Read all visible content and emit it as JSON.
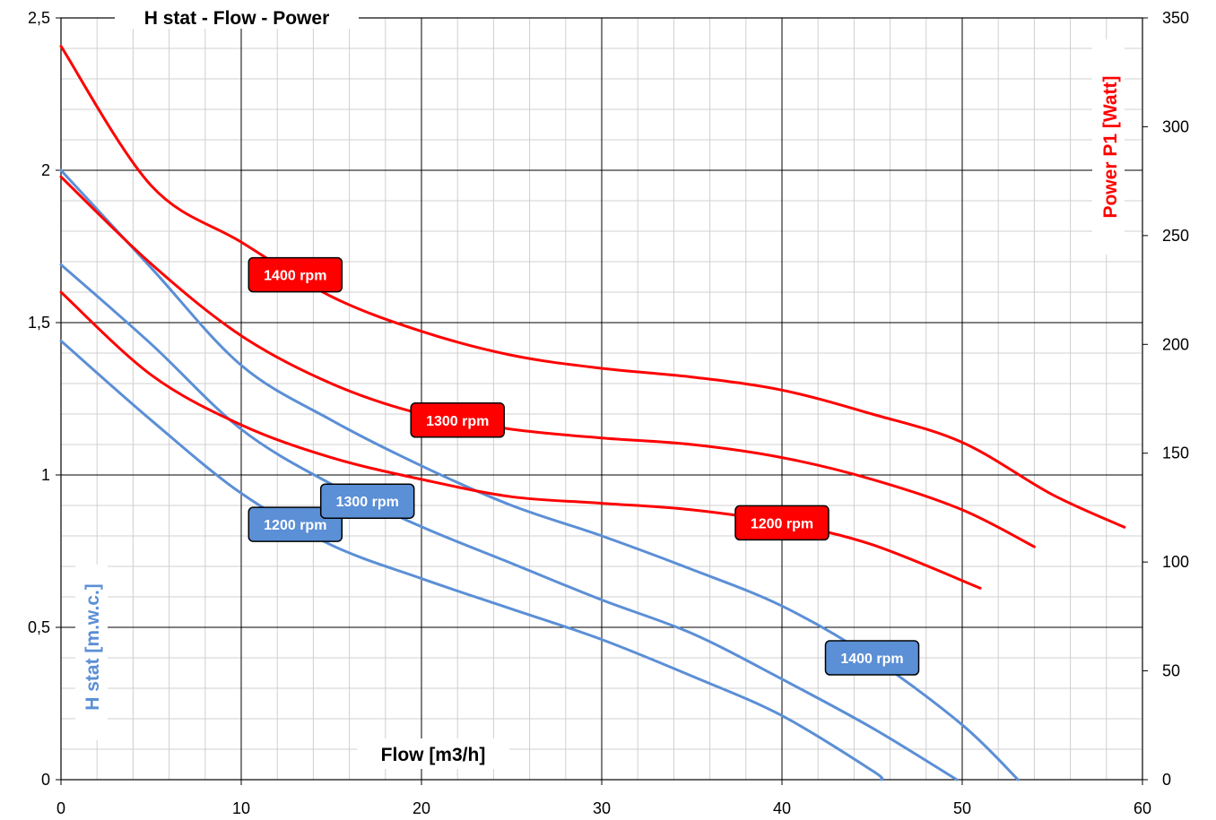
{
  "chart_data": {
    "type": "line",
    "title": "H stat - Flow - Power",
    "xlabel": "Flow [m3/h]",
    "ylabel_left": "H stat  [m.w.c.]",
    "ylabel_right": "Power P1  [Watt]",
    "xlim": [
      0,
      60
    ],
    "ylim_left": [
      0,
      2.5
    ],
    "ylim_right": [
      0,
      350
    ],
    "x_ticks": [
      "0",
      "10",
      "20",
      "30",
      "40",
      "50",
      "60"
    ],
    "y_left_ticks": [
      "0",
      "0,5",
      "1",
      "1,5",
      "2",
      "2,5"
    ],
    "y_right_ticks": [
      "0",
      "50",
      "100",
      "150",
      "200",
      "250",
      "300",
      "350"
    ],
    "grid": true,
    "colors": {
      "head": "#5b8fd6",
      "power": "#ff0000",
      "label_border": "#000000"
    },
    "series": [
      {
        "name": "1200 rpm",
        "kind": "head",
        "axis": "left",
        "x": [
          0,
          5,
          10,
          15,
          20,
          25,
          30,
          35,
          40,
          45,
          45.5
        ],
        "y": [
          1.44,
          1.18,
          0.94,
          0.77,
          0.66,
          0.56,
          0.46,
          0.34,
          0.21,
          0.03,
          0.0
        ]
      },
      {
        "name": "1300 rpm",
        "kind": "head",
        "axis": "left",
        "x": [
          0,
          5,
          10,
          15,
          20,
          25,
          30,
          35,
          40,
          45,
          49.7
        ],
        "y": [
          1.69,
          1.43,
          1.15,
          0.97,
          0.83,
          0.71,
          0.59,
          0.48,
          0.33,
          0.17,
          0.0
        ]
      },
      {
        "name": "1400 rpm",
        "kind": "head",
        "axis": "left",
        "x": [
          0,
          5,
          10,
          15,
          20,
          25,
          30,
          35,
          40,
          45,
          50,
          53.1
        ],
        "y": [
          2.0,
          1.68,
          1.36,
          1.18,
          1.03,
          0.9,
          0.8,
          0.69,
          0.57,
          0.4,
          0.18,
          0.0
        ]
      },
      {
        "name": "1200 rpm",
        "kind": "power",
        "axis": "right",
        "x": [
          0,
          5,
          10,
          15,
          20,
          25,
          30,
          35,
          40,
          45,
          51
        ],
        "y": [
          224,
          186,
          163,
          148,
          138,
          130,
          127,
          124,
          118,
          108,
          88
        ]
      },
      {
        "name": "1300 rpm",
        "kind": "power",
        "axis": "right",
        "x": [
          0,
          5,
          10,
          15,
          20,
          25,
          30,
          35,
          40,
          45,
          50,
          54
        ],
        "y": [
          277,
          237,
          204,
          182,
          168,
          161,
          157,
          154,
          148,
          138,
          124,
          107
        ]
      },
      {
        "name": "1400 rpm",
        "kind": "power",
        "axis": "right",
        "x": [
          0,
          5,
          10,
          15,
          20,
          25,
          30,
          35,
          40,
          45,
          50,
          55,
          59
        ],
        "y": [
          337,
          273,
          247,
          222,
          206,
          195,
          189,
          185,
          179,
          168,
          155,
          131,
          116
        ]
      }
    ]
  }
}
